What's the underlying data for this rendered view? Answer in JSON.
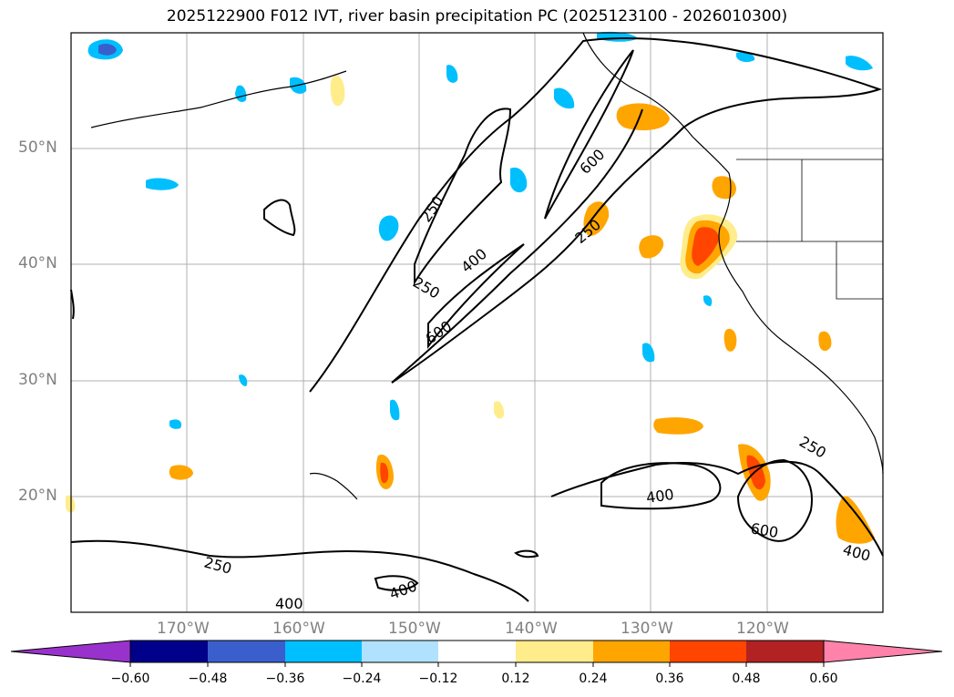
{
  "title": "2025122900 F012 IVT, river basin precipitation PC (2025123100 - 2026010300)",
  "lat_labels": [
    "50°N",
    "40°N",
    "30°N",
    "20°N"
  ],
  "lon_labels": [
    "170°W",
    "160°W",
    "150°W",
    "140°W",
    "130°W",
    "120°W"
  ],
  "contour_labels": [
    "250",
    "250",
    "250",
    "250",
    "250",
    "400",
    "400",
    "400",
    "400",
    "400",
    "600",
    "600",
    "600"
  ],
  "colorbar": {
    "ticks": [
      "−0.60",
      "−0.48",
      "−0.36",
      "−0.24",
      "−0.12",
      "0.12",
      "0.24",
      "0.36",
      "0.48",
      "0.60"
    ],
    "colors": [
      "#9932cc",
      "#00008b",
      "#3a5fcd",
      "#00bfff",
      "#b0e2ff",
      "#ffffff",
      "#ffec8b",
      "#ffa500",
      "#ff4500",
      "#b22222",
      "#ff82ab"
    ]
  }
}
